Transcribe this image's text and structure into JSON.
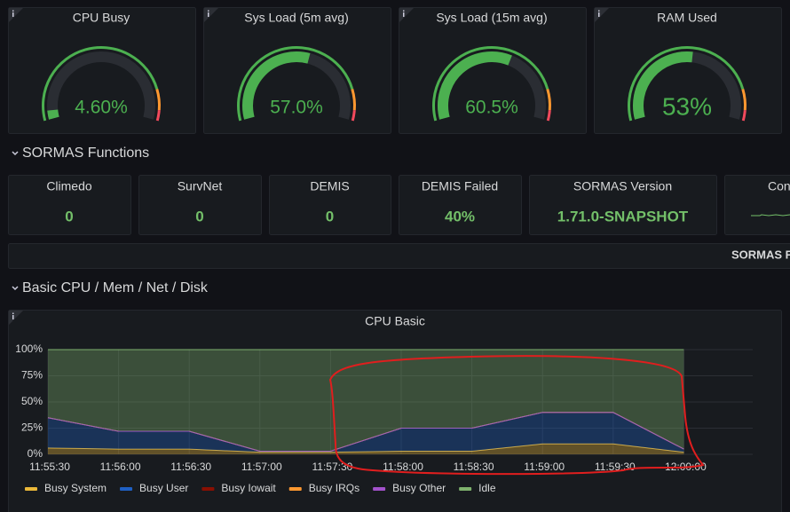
{
  "gauges": {
    "range": [
      0,
      100
    ],
    "thresholds": [
      {
        "value": 0,
        "color": "#4cb050"
      },
      {
        "value": 85,
        "color": "#ff9830"
      },
      {
        "value": 95,
        "color": "#f2495c"
      }
    ],
    "items": [
      {
        "title": "CPU Busy",
        "value": 4.6,
        "label": "4.60%"
      },
      {
        "title": "Sys Load (5m avg)",
        "value": 57.0,
        "label": "57.0%"
      },
      {
        "title": "Sys Load (15m avg)",
        "value": 60.5,
        "label": "60.5%"
      },
      {
        "title": "RAM Used",
        "value": 53,
        "label": "53%"
      }
    ]
  },
  "rows": {
    "functions": "SORMAS Functions",
    "basic": "Basic CPU / Mem / Net / Disk"
  },
  "stats": [
    {
      "title": "Climedo",
      "value": "0"
    },
    {
      "title": "SurvNet",
      "value": "0"
    },
    {
      "title": "DEMIS",
      "value": "0"
    },
    {
      "title": "DEMIS Failed",
      "value": "40%"
    },
    {
      "title": "SORMAS Version",
      "value": "1.71.0-SNAPSHOT"
    },
    {
      "title": "Con"
    }
  ],
  "banner": "SORMAS F",
  "chart_data": {
    "type": "area",
    "stacked": true,
    "title": "CPU Basic",
    "categories": [
      "11:55:30",
      "11:56:00",
      "11:56:30",
      "11:57:00",
      "11:57:30",
      "11:58:00",
      "11:58:30",
      "11:59:00",
      "11:59:30",
      "12:00:00"
    ],
    "series": [
      {
        "name": "Busy System",
        "color": "#eab839",
        "values": [
          6,
          5,
          5,
          2,
          2,
          3,
          3,
          10,
          10,
          2
        ]
      },
      {
        "name": "Busy User",
        "color": "#1f60c4",
        "values": [
          29,
          17,
          17,
          1,
          1,
          22,
          22,
          30,
          30,
          3
        ]
      },
      {
        "name": "Busy Iowait",
        "color": "#890f02",
        "values": [
          0,
          0,
          0,
          0,
          0,
          0,
          0,
          0,
          0,
          0
        ]
      },
      {
        "name": "Busy IRQs",
        "color": "#ff9830",
        "values": [
          0,
          0,
          0,
          0,
          0,
          0,
          0,
          0,
          0,
          0
        ]
      },
      {
        "name": "Busy Other",
        "color": "#a352cc",
        "values": [
          0,
          0,
          0,
          0,
          0,
          0,
          0,
          0,
          0,
          0
        ]
      },
      {
        "name": "Idle",
        "color": "#7eb26d",
        "values": [
          65,
          78,
          78,
          97,
          97,
          75,
          75,
          60,
          60,
          95
        ]
      }
    ],
    "ylim": [
      0,
      100
    ],
    "yticks": [
      {
        "value": 0,
        "label": "0%"
      },
      {
        "value": 25,
        "label": "25%"
      },
      {
        "value": 50,
        "label": "50%"
      },
      {
        "value": 75,
        "label": "75%"
      },
      {
        "value": 100,
        "label": "100%"
      }
    ],
    "grid": true
  }
}
